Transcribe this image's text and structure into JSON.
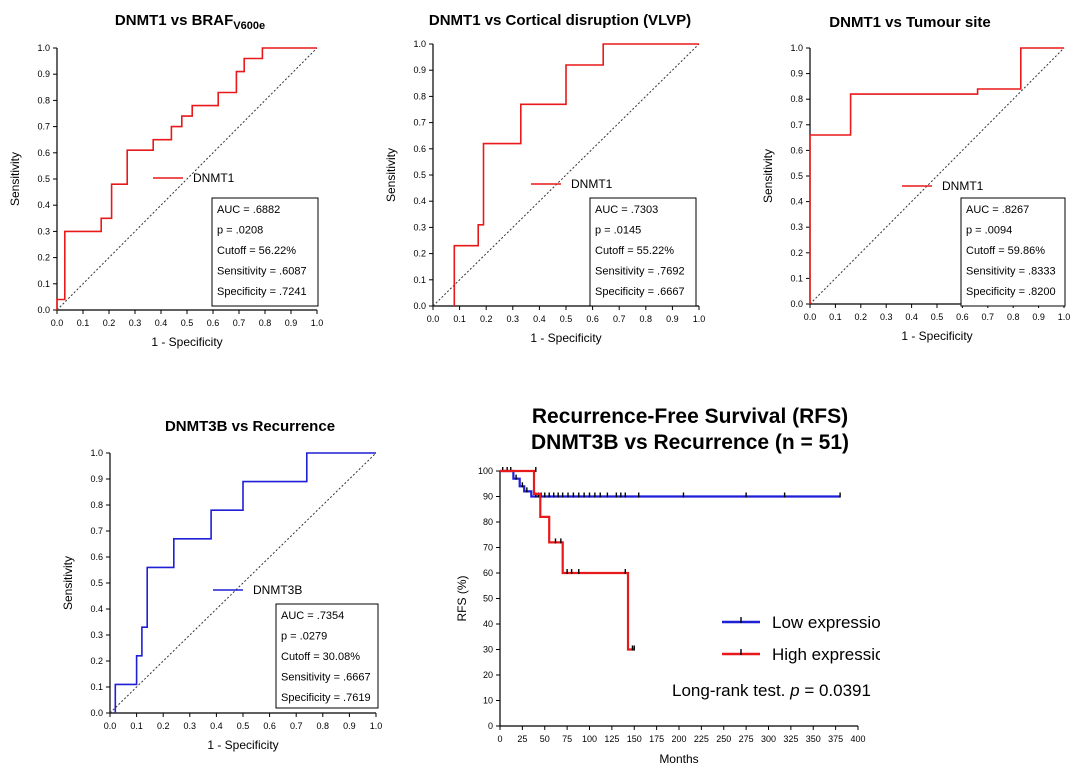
{
  "chart_data": [
    {
      "id": "roc1",
      "type": "line",
      "title_main": "DNMT1 vs BRAF",
      "title_sub": "V600e",
      "xlabel": "1 - Specificity",
      "ylabel": "Sensitivity",
      "xlim": [
        0,
        1
      ],
      "ylim": [
        0,
        1
      ],
      "ticks": [
        "0.0",
        "0.1",
        "0.2",
        "0.3",
        "0.4",
        "0.5",
        "0.6",
        "0.7",
        "0.8",
        "0.9",
        "1.0"
      ],
      "color": "#e8191a",
      "legend": "DNMT1",
      "stats": [
        "AUC = .6882",
        "p = .0208",
        "Cutoff = 56.22%",
        "Sensitivity = .6087",
        "Specificity = .7241"
      ],
      "curve": [
        [
          0,
          0
        ],
        [
          0,
          0.04
        ],
        [
          0.03,
          0.04
        ],
        [
          0.03,
          0.3
        ],
        [
          0.17,
          0.3
        ],
        [
          0.17,
          0.35
        ],
        [
          0.21,
          0.35
        ],
        [
          0.21,
          0.48
        ],
        [
          0.27,
          0.48
        ],
        [
          0.27,
          0.61
        ],
        [
          0.37,
          0.61
        ],
        [
          0.37,
          0.65
        ],
        [
          0.44,
          0.65
        ],
        [
          0.44,
          0.7
        ],
        [
          0.48,
          0.7
        ],
        [
          0.48,
          0.74
        ],
        [
          0.52,
          0.74
        ],
        [
          0.52,
          0.78
        ],
        [
          0.62,
          0.78
        ],
        [
          0.62,
          0.83
        ],
        [
          0.69,
          0.83
        ],
        [
          0.69,
          0.91
        ],
        [
          0.72,
          0.91
        ],
        [
          0.72,
          0.96
        ],
        [
          0.79,
          0.96
        ],
        [
          0.79,
          1.0
        ],
        [
          1.0,
          1.0
        ]
      ]
    },
    {
      "id": "roc2",
      "type": "line",
      "title_main": "DNMT1 vs Cortical disruption (VLVP)",
      "title_sub": "",
      "xlabel": "1 - Specificity",
      "ylabel": "Sensitivity",
      "xlim": [
        0,
        1
      ],
      "ylim": [
        0,
        1
      ],
      "ticks": [
        "0.0",
        "0.1",
        "0.2",
        "0.3",
        "0.4",
        "0.5",
        "0.6",
        "0.7",
        "0.8",
        "0.9",
        "1.0"
      ],
      "color": "#e8191a",
      "legend": "DNMT1",
      "stats": [
        "AUC = .7303",
        "p = .0145",
        "Cutoff = 55.22%",
        "Sensitivity = .7692",
        "Specificity = .6667"
      ],
      "curve": [
        [
          0.08,
          0
        ],
        [
          0.08,
          0.23
        ],
        [
          0.17,
          0.23
        ],
        [
          0.17,
          0.31
        ],
        [
          0.19,
          0.31
        ],
        [
          0.19,
          0.62
        ],
        [
          0.33,
          0.62
        ],
        [
          0.33,
          0.77
        ],
        [
          0.5,
          0.77
        ],
        [
          0.5,
          0.92
        ],
        [
          0.64,
          0.92
        ],
        [
          0.64,
          1.0
        ],
        [
          1.0,
          1.0
        ]
      ]
    },
    {
      "id": "roc3",
      "type": "line",
      "title_main": "DNMT1 vs Tumour site",
      "title_sub": "",
      "xlabel": "1 - Specificity",
      "ylabel": "Sensitivity",
      "xlim": [
        0,
        1
      ],
      "ylim": [
        0,
        1
      ],
      "ticks": [
        "0.0",
        "0.1",
        "0.2",
        "0.3",
        "0.4",
        "0.5",
        "0.6",
        "0.7",
        "0.8",
        "0.9",
        "1.0"
      ],
      "color": "#e8191a",
      "legend": "DNMT1",
      "stats": [
        "AUC = .8267",
        "p = .0094",
        "Cutoff = 59.86%",
        "Sensitivity = .8333",
        "Specificity = .8200"
      ],
      "curve": [
        [
          0,
          0
        ],
        [
          0,
          0.66
        ],
        [
          0.16,
          0.66
        ],
        [
          0.16,
          0.82
        ],
        [
          0.66,
          0.82
        ],
        [
          0.66,
          0.84
        ],
        [
          0.83,
          0.84
        ],
        [
          0.83,
          1.0
        ],
        [
          1.0,
          1.0
        ]
      ]
    },
    {
      "id": "roc4",
      "type": "line",
      "title_main": "DNMT3B vs Recurrence",
      "title_sub": "",
      "xlabel": "1 - Specificity",
      "ylabel": "Sensitivity",
      "xlim": [
        0,
        1
      ],
      "ylim": [
        0,
        1
      ],
      "ticks": [
        "0.0",
        "0.1",
        "0.2",
        "0.3",
        "0.4",
        "0.5",
        "0.6",
        "0.7",
        "0.8",
        "0.9",
        "1.0"
      ],
      "color": "#1f1fd6",
      "legend": "DNMT3B",
      "stats": [
        "AUC = .7354",
        "p = .0279",
        "Cutoff = 30.08%",
        "Sensitivity = .6667",
        "Specificity = .7619"
      ],
      "curve": [
        [
          0.02,
          0
        ],
        [
          0.02,
          0.11
        ],
        [
          0.1,
          0.11
        ],
        [
          0.1,
          0.22
        ],
        [
          0.12,
          0.22
        ],
        [
          0.12,
          0.33
        ],
        [
          0.14,
          0.33
        ],
        [
          0.14,
          0.56
        ],
        [
          0.24,
          0.56
        ],
        [
          0.24,
          0.67
        ],
        [
          0.38,
          0.67
        ],
        [
          0.38,
          0.78
        ],
        [
          0.5,
          0.78
        ],
        [
          0.5,
          0.89
        ],
        [
          0.74,
          0.89
        ],
        [
          0.74,
          1.0
        ],
        [
          1.0,
          1.0
        ]
      ]
    },
    {
      "id": "km",
      "type": "line",
      "title_lines": [
        "Recurrence-Free Survival (RFS)",
        "DNMT3B vs Recurrence (n = 51)"
      ],
      "xlabel": "Months",
      "ylabel": "RFS (%)",
      "xlim": [
        0,
        400
      ],
      "ylim": [
        0,
        100
      ],
      "xticks": [
        "0",
        "25",
        "50",
        "75",
        "100",
        "125",
        "150",
        "175",
        "200",
        "225",
        "250",
        "275",
        "300",
        "325",
        "350",
        "375",
        "400"
      ],
      "yticks": [
        "0",
        "10",
        "20",
        "30",
        "40",
        "50",
        "60",
        "70",
        "80",
        "90",
        "100"
      ],
      "test_text": "Long-rank test.",
      "p_label": "p",
      "p_value": "= 0.0391",
      "series": [
        {
          "name": "Low expression",
          "color": "#1f1fd6",
          "steps": [
            [
              0,
              100
            ],
            [
              15,
              100
            ],
            [
              15,
              97
            ],
            [
              22,
              97
            ],
            [
              22,
              94
            ],
            [
              27,
              94
            ],
            [
              27,
              92
            ],
            [
              35,
              92
            ],
            [
              35,
              90
            ],
            [
              380,
              90
            ]
          ],
          "censors": [
            [
              3,
              100
            ],
            [
              8,
              100
            ],
            [
              12,
              100
            ],
            [
              18,
              97
            ],
            [
              25,
              94
            ],
            [
              30,
              92
            ],
            [
              40,
              90
            ],
            [
              43,
              90
            ],
            [
              46,
              90
            ],
            [
              50,
              90
            ],
            [
              55,
              90
            ],
            [
              60,
              90
            ],
            [
              65,
              90
            ],
            [
              70,
              90
            ],
            [
              76,
              90
            ],
            [
              82,
              90
            ],
            [
              88,
              90
            ],
            [
              94,
              90
            ],
            [
              100,
              90
            ],
            [
              106,
              90
            ],
            [
              112,
              90
            ],
            [
              120,
              90
            ],
            [
              130,
              90
            ],
            [
              135,
              90
            ],
            [
              140,
              90
            ],
            [
              155,
              90
            ],
            [
              205,
              90
            ],
            [
              275,
              90
            ],
            [
              318,
              90
            ],
            [
              380,
              90
            ]
          ]
        },
        {
          "name": "High expression",
          "color": "#e8191a",
          "steps": [
            [
              0,
              100
            ],
            [
              38,
              100
            ],
            [
              38,
              91
            ],
            [
              45,
              91
            ],
            [
              45,
              82
            ],
            [
              55,
              82
            ],
            [
              55,
              72
            ],
            [
              70,
              72
            ],
            [
              70,
              60
            ],
            [
              143,
              60
            ],
            [
              143,
              30
            ],
            [
              150,
              30
            ]
          ],
          "censors": [
            [
              40,
              100
            ],
            [
              62,
              72
            ],
            [
              68,
              72
            ],
            [
              75,
              60
            ],
            [
              80,
              60
            ],
            [
              88,
              60
            ],
            [
              140,
              60
            ],
            [
              148,
              30
            ],
            [
              150,
              30
            ]
          ]
        }
      ]
    }
  ]
}
